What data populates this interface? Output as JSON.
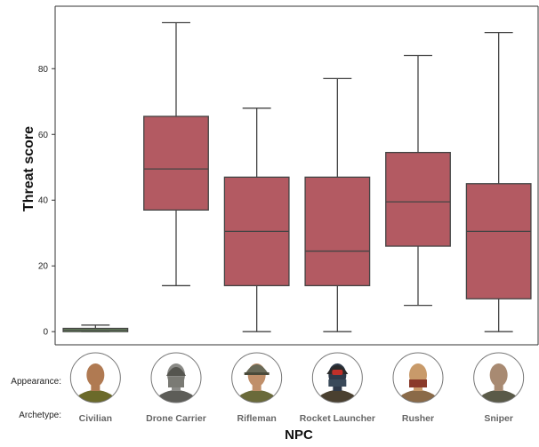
{
  "chart_data": {
    "type": "boxplot",
    "ylabel": "Threat score",
    "xlabel": "NPC",
    "ylim": [
      -4,
      99
    ],
    "yticks": [
      0,
      20,
      40,
      60,
      80
    ],
    "grid": false,
    "row_labels": {
      "appearance": "Appearance:",
      "archetype": "Archetype:"
    },
    "categories": [
      "Civilian",
      "Drone Carrier",
      "Rifleman",
      "Rocket Launcher",
      "Rusher",
      "Sniper"
    ],
    "series": [
      {
        "category": "Civilian",
        "min": 0,
        "q1": 0,
        "median": 0.5,
        "q3": 1,
        "max": 2,
        "color": "#7aa86b"
      },
      {
        "category": "Drone Carrier",
        "min": 14,
        "q1": 37,
        "median": 49.5,
        "q3": 65.5,
        "max": 94,
        "color": "#b35a62"
      },
      {
        "category": "Rifleman",
        "min": 0,
        "q1": 14,
        "median": 30.5,
        "q3": 47,
        "max": 68,
        "color": "#b35a62"
      },
      {
        "category": "Rocket Launcher",
        "min": 0,
        "q1": 14,
        "median": 24.5,
        "q3": 47,
        "max": 77,
        "color": "#b35a62"
      },
      {
        "category": "Rusher",
        "min": 8,
        "q1": 26,
        "median": 39.5,
        "q3": 54.5,
        "max": 84,
        "color": "#b35a62"
      },
      {
        "category": "Sniper",
        "min": 0,
        "q1": 10,
        "median": 30.5,
        "q3": 45,
        "max": 91,
        "color": "#b35a62"
      }
    ],
    "portraits": [
      {
        "category": "Civilian",
        "icon": "civilian-portrait-icon",
        "skin": "#b07a52",
        "head": "bald",
        "shirt": "#6b6a2a"
      },
      {
        "category": "Drone Carrier",
        "icon": "drone-carrier-portrait-icon",
        "skin": "#8a8a86",
        "head": "masked",
        "shirt": "#5d5d58"
      },
      {
        "category": "Rifleman",
        "icon": "rifleman-portrait-icon",
        "skin": "#c08f6a",
        "head": "helmet",
        "shirt": "#6a6a3a"
      },
      {
        "category": "Rocket Launcher",
        "icon": "rocket-launcher-portrait-icon",
        "skin": "#2f3a4a",
        "head": "redhelmet",
        "shirt": "#4a4030"
      },
      {
        "category": "Rusher",
        "icon": "rusher-portrait-icon",
        "skin": "#c89a6a",
        "head": "bandana",
        "shirt": "#8a6a48"
      },
      {
        "category": "Sniper",
        "icon": "sniper-portrait-icon",
        "skin": "#a88a72",
        "head": "bald",
        "shirt": "#5a5a48"
      }
    ]
  }
}
